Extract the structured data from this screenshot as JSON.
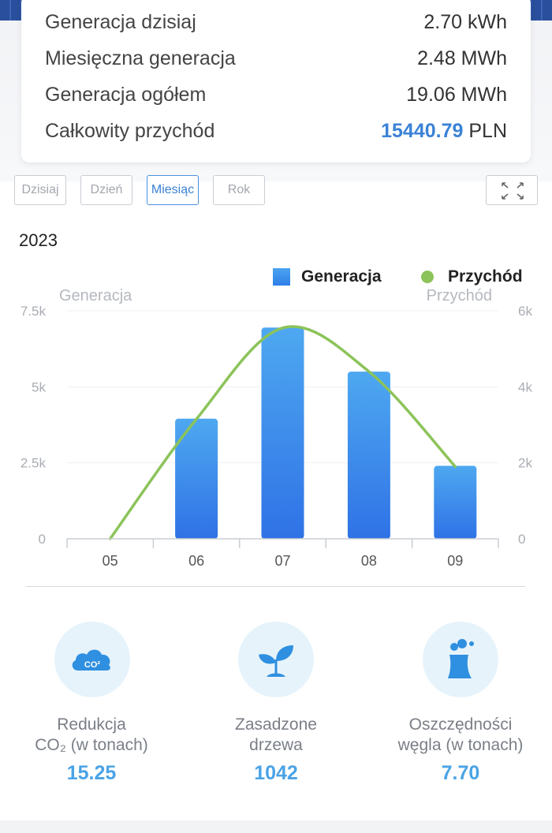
{
  "summary": {
    "rows": [
      {
        "label": "Generacja dzisiaj",
        "value": "2.70 kWh"
      },
      {
        "label": "Miesięczna generacja",
        "value": "2.48 MWh"
      },
      {
        "label": "Generacja ogółem",
        "value": "19.06 MWh"
      }
    ],
    "revenue": {
      "label": "Całkowity przychód",
      "amount": "15440.79",
      "currency": "PLN"
    }
  },
  "tabs": [
    {
      "label": "Dzisiaj",
      "active": false
    },
    {
      "label": "Dzień",
      "active": false
    },
    {
      "label": "Miesiąc",
      "active": true
    },
    {
      "label": "Rok",
      "active": false
    }
  ],
  "year": "2023",
  "legend": {
    "generation": "Generacja",
    "revenue": "Przychód"
  },
  "chart_data": {
    "type": "bar",
    "categories": [
      "05",
      "06",
      "07",
      "08",
      "09"
    ],
    "series": [
      {
        "name": "Generacja",
        "type": "bar",
        "axis": "left",
        "values": [
          0,
          3950,
          6950,
          5500,
          2400
        ]
      },
      {
        "name": "Przychód",
        "type": "line",
        "axis": "right",
        "values": [
          0,
          3150,
          5550,
          4400,
          1900
        ]
      }
    ],
    "ylabel_left": "Generacja",
    "ylabel_right": "Przychód",
    "ylim_left": [
      0,
      7500
    ],
    "ylim_right": [
      0,
      6000
    ],
    "yticks_left": [
      "0",
      "2.5k",
      "5k",
      "7.5k"
    ],
    "yticks_right": [
      "0",
      "2k",
      "4k",
      "6k"
    ],
    "colors": {
      "bar_top": "#4ea8f0",
      "bar_bottom": "#2f72e6",
      "line": "#8cc35a"
    }
  },
  "stats": [
    {
      "icon": "co2-cloud-icon",
      "label_line1": "Redukcja",
      "label_line2": "CO₂ (w tonach)",
      "value": "15.25"
    },
    {
      "icon": "sprout-icon",
      "label_line1": "Zasadzone",
      "label_line2": "drzewa",
      "value": "1042"
    },
    {
      "icon": "power-plant-icon",
      "label_line1": "Oszczędności",
      "label_line2": "węgla (w tonach)",
      "value": "7.70"
    }
  ],
  "colors": {
    "accent": "#3b82d6",
    "stat_value": "#4aa3e6"
  }
}
